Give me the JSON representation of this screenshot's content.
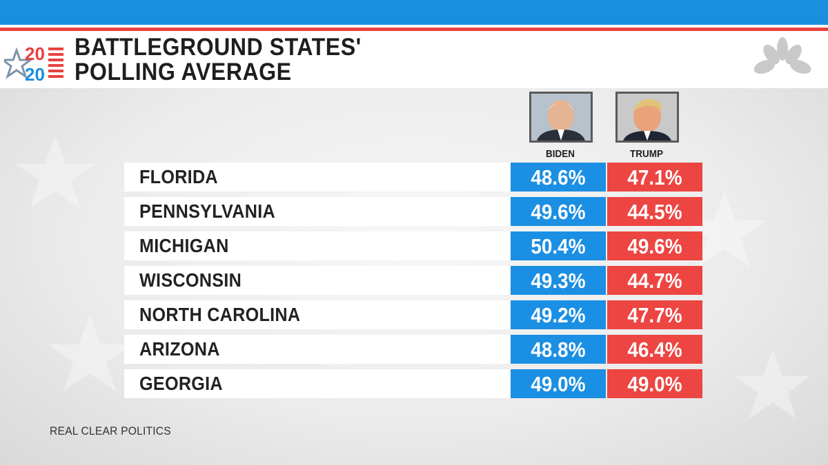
{
  "header": {
    "title_line1": "BATTLEGROUND STATES'",
    "title_line2": "POLLING AVERAGE",
    "logo_top": "20",
    "logo_bottom": "20",
    "network_logo": "peacock-icon"
  },
  "candidates": [
    {
      "name": "BIDEN",
      "color": "#1b8fe3",
      "photo": "biden-portrait"
    },
    {
      "name": "TRUMP",
      "color": "#ed4542",
      "photo": "trump-portrait"
    }
  ],
  "source": "REAL CLEAR POLITICS",
  "chart_data": {
    "type": "table",
    "title": "BATTLEGROUND STATES' POLLING AVERAGE",
    "columns": [
      "BIDEN",
      "TRUMP"
    ],
    "categories": [
      "FLORIDA",
      "PENNSYLVANIA",
      "MICHIGAN",
      "WISCONSIN",
      "NORTH CAROLINA",
      "ARIZONA",
      "GEORGIA"
    ],
    "series": [
      {
        "name": "BIDEN",
        "values": [
          48.6,
          49.6,
          50.4,
          49.3,
          49.2,
          48.8,
          49.0
        ],
        "labels": [
          "48.6%",
          "49.6%",
          "50.4%",
          "49.3%",
          "49.2%",
          "48.8%",
          "49.0%"
        ]
      },
      {
        "name": "TRUMP",
        "values": [
          47.1,
          44.5,
          49.6,
          44.7,
          47.7,
          46.4,
          49.0
        ],
        "labels": [
          "47.1%",
          "44.5%",
          "49.6%",
          "44.7%",
          "47.7%",
          "46.4%",
          "49.0%"
        ]
      }
    ]
  }
}
